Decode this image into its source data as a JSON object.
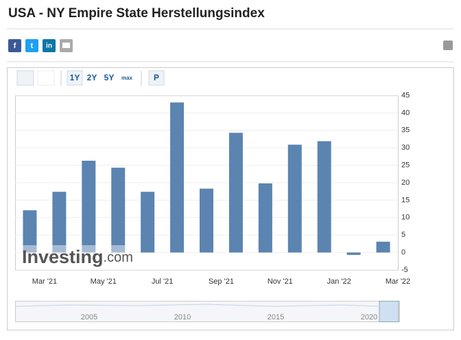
{
  "page_title": "USA - NY Empire State Herstellungsindex",
  "share": [
    "f",
    "t",
    "in"
  ],
  "toolbar": [
    "1Y",
    "2Y",
    "5Y",
    "max",
    "P"
  ],
  "watermark": [
    "Investing",
    ".com"
  ],
  "navigator_labels": [
    "2005",
    "2010",
    "2015",
    "2020"
  ],
  "chart_data": {
    "type": "bar",
    "x_labels": [
      "Mar '21",
      "May '21",
      "Jul '21",
      "Sep '21",
      "Nov '21",
      "Jan '22",
      "Mar '22"
    ],
    "values": [
      12.1,
      17.4,
      26.3,
      24.3,
      17.4,
      43.0,
      18.3,
      34.3,
      19.8,
      30.9,
      31.9,
      -0.7,
      3.1
    ],
    "color": "#5b84b1",
    "ylim": [
      -5,
      45
    ],
    "yticks": [
      -5,
      0,
      5,
      10,
      15,
      20,
      25,
      30,
      35,
      40,
      45
    ],
    "grid": true
  }
}
